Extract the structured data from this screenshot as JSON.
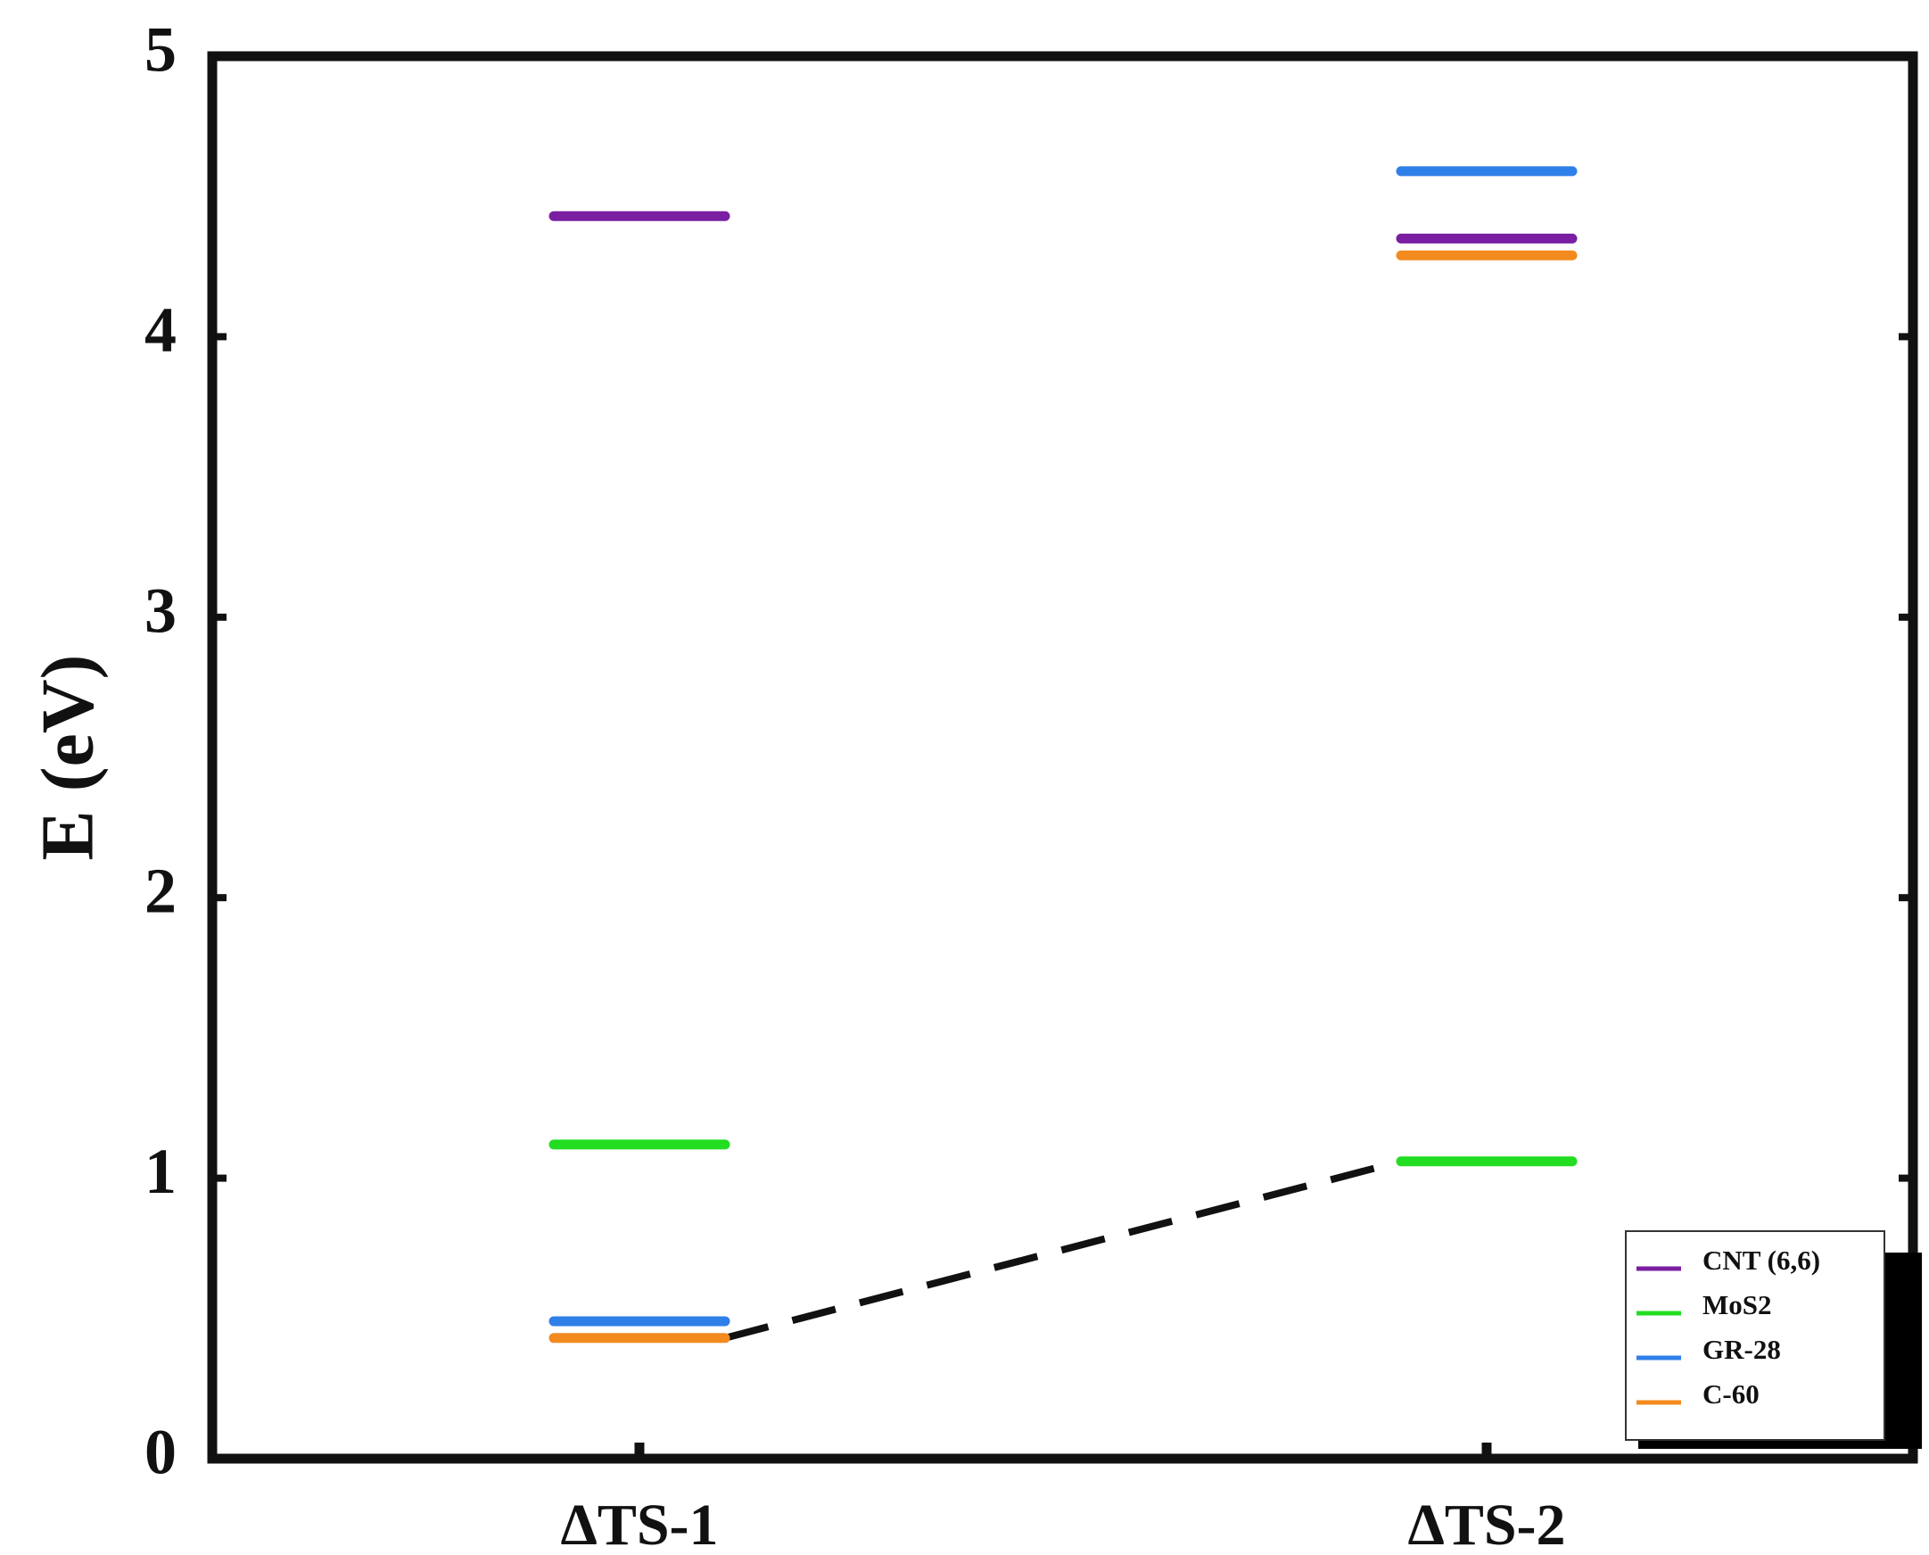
{
  "chart_data": {
    "type": "level",
    "ylabel": "E (eV)",
    "categories": [
      "ΔTS-1",
      "ΔTS-2"
    ],
    "series": [
      {
        "name": "CNT (6,6)",
        "color": "#7a1fa2",
        "values": [
          4.43,
          4.35
        ]
      },
      {
        "name": "MoS2",
        "color": "#22dd22",
        "values": [
          1.12,
          1.06
        ]
      },
      {
        "name": "GR-28",
        "color": "#2f7fe8",
        "values": [
          0.49,
          4.59
        ]
      },
      {
        "name": "C-60",
        "color": "#f28a1e",
        "values": [
          0.43,
          4.29
        ]
      }
    ],
    "ylim": [
      0,
      5
    ],
    "yticks": [
      0,
      1,
      2,
      3,
      4,
      5
    ],
    "legend": "lower right"
  }
}
